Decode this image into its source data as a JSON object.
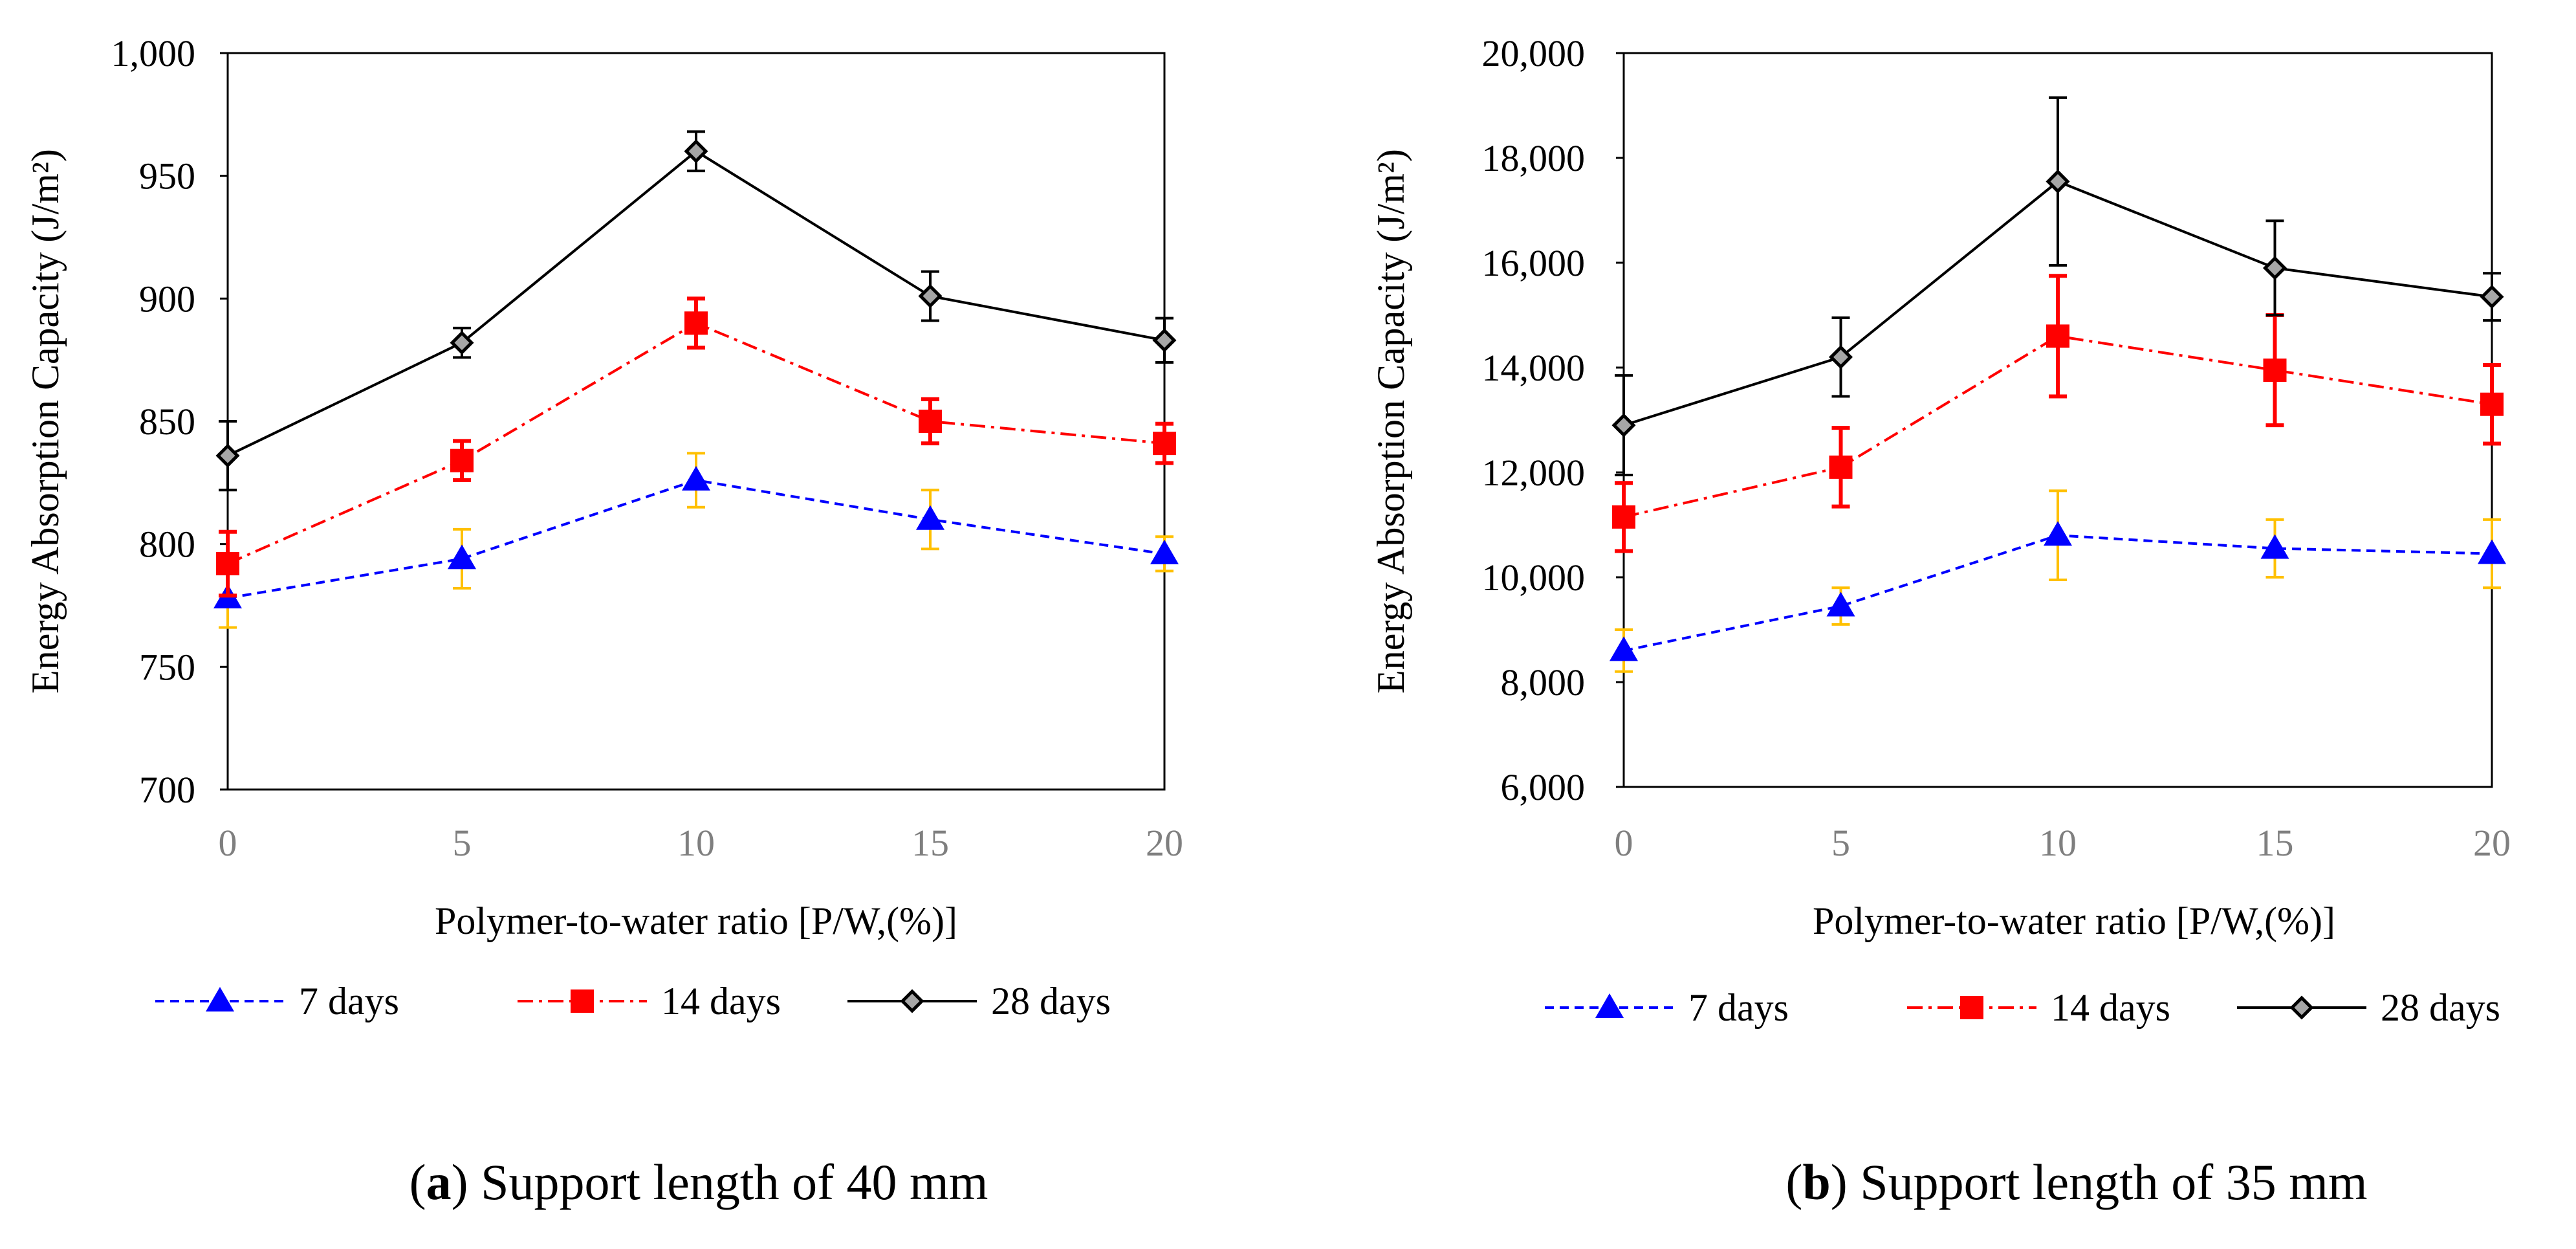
{
  "chart_data": [
    {
      "type": "line",
      "panel_label": "a",
      "caption": "Support length of 40 mm",
      "xlabel": "Polymer-to-water ratio  [P/W,(%)]",
      "ylabel": "Energy Absorption Capacity (J/m²)",
      "x": [
        0,
        5,
        10,
        15,
        20
      ],
      "xlim": [
        0,
        20
      ],
      "ylim": [
        700,
        1000
      ],
      "yticks": [
        700,
        750,
        800,
        850,
        900,
        950,
        1000
      ],
      "ytick_labels": [
        "700",
        "750",
        "800",
        "850",
        "900",
        "950",
        "1,000"
      ],
      "xtick_labels": [
        "0",
        "5",
        "10",
        "15",
        "20"
      ],
      "grid": false,
      "legend_position": "bottom",
      "series": [
        {
          "name": "7 days",
          "values": [
            778,
            794,
            826,
            810,
            796
          ],
          "errors": [
            12,
            12,
            11,
            12,
            7
          ],
          "color": "#0000ff",
          "error_color": "#ffc000",
          "dash": "dashed",
          "marker": "triangle"
        },
        {
          "name": "14 days",
          "values": [
            792,
            834,
            890,
            850,
            841
          ],
          "errors": [
            13,
            8,
            10,
            9,
            8
          ],
          "color": "#ff0000",
          "error_color": "#ff0000",
          "dash": "dashdot",
          "marker": "square"
        },
        {
          "name": "28 days",
          "values": [
            836,
            882,
            960,
            901,
            883
          ],
          "errors": [
            14,
            6,
            8,
            10,
            9
          ],
          "color": "#000000",
          "error_color": "#000000",
          "dash": "solid",
          "marker": "diamond"
        }
      ]
    },
    {
      "type": "line",
      "panel_label": "b",
      "caption": "Support length of 35 mm",
      "xlabel": "Polymer-to-water ratio  [P/W,(%)]",
      "ylabel": "Energy Absorption Capacity (J/m²)",
      "x": [
        0,
        5,
        10,
        15,
        20
      ],
      "xlim": [
        0,
        20
      ],
      "ylim": [
        6000,
        20000
      ],
      "yticks": [
        6000,
        8000,
        10000,
        12000,
        14000,
        16000,
        18000,
        20000
      ],
      "ytick_labels": [
        "6,000",
        "8,000",
        "10,000",
        "12,000",
        "14,000",
        "16,000",
        "18,000",
        "20,000"
      ],
      "xtick_labels": [
        "0",
        "5",
        "10",
        "15",
        "20"
      ],
      "grid": false,
      "legend_position": "bottom",
      "series": [
        {
          "name": "7 days",
          "values": [
            8600,
            9450,
            10800,
            10550,
            10450
          ],
          "errors": [
            400,
            350,
            850,
            550,
            650
          ],
          "color": "#0000ff",
          "error_color": "#ffc000",
          "dash": "dashed",
          "marker": "triangle"
        },
        {
          "name": "14 days",
          "values": [
            11150,
            12100,
            14600,
            13950,
            13300
          ],
          "errors": [
            650,
            750,
            1150,
            1050,
            750
          ],
          "color": "#ff0000",
          "error_color": "#ff0000",
          "dash": "dashdot",
          "marker": "square"
        },
        {
          "name": "28 days",
          "values": [
            12900,
            14200,
            17550,
            15900,
            15350
          ],
          "errors": [
            950,
            750,
            1600,
            900,
            450
          ],
          "color": "#000000",
          "error_color": "#000000",
          "dash": "solid",
          "marker": "diamond"
        }
      ]
    }
  ]
}
